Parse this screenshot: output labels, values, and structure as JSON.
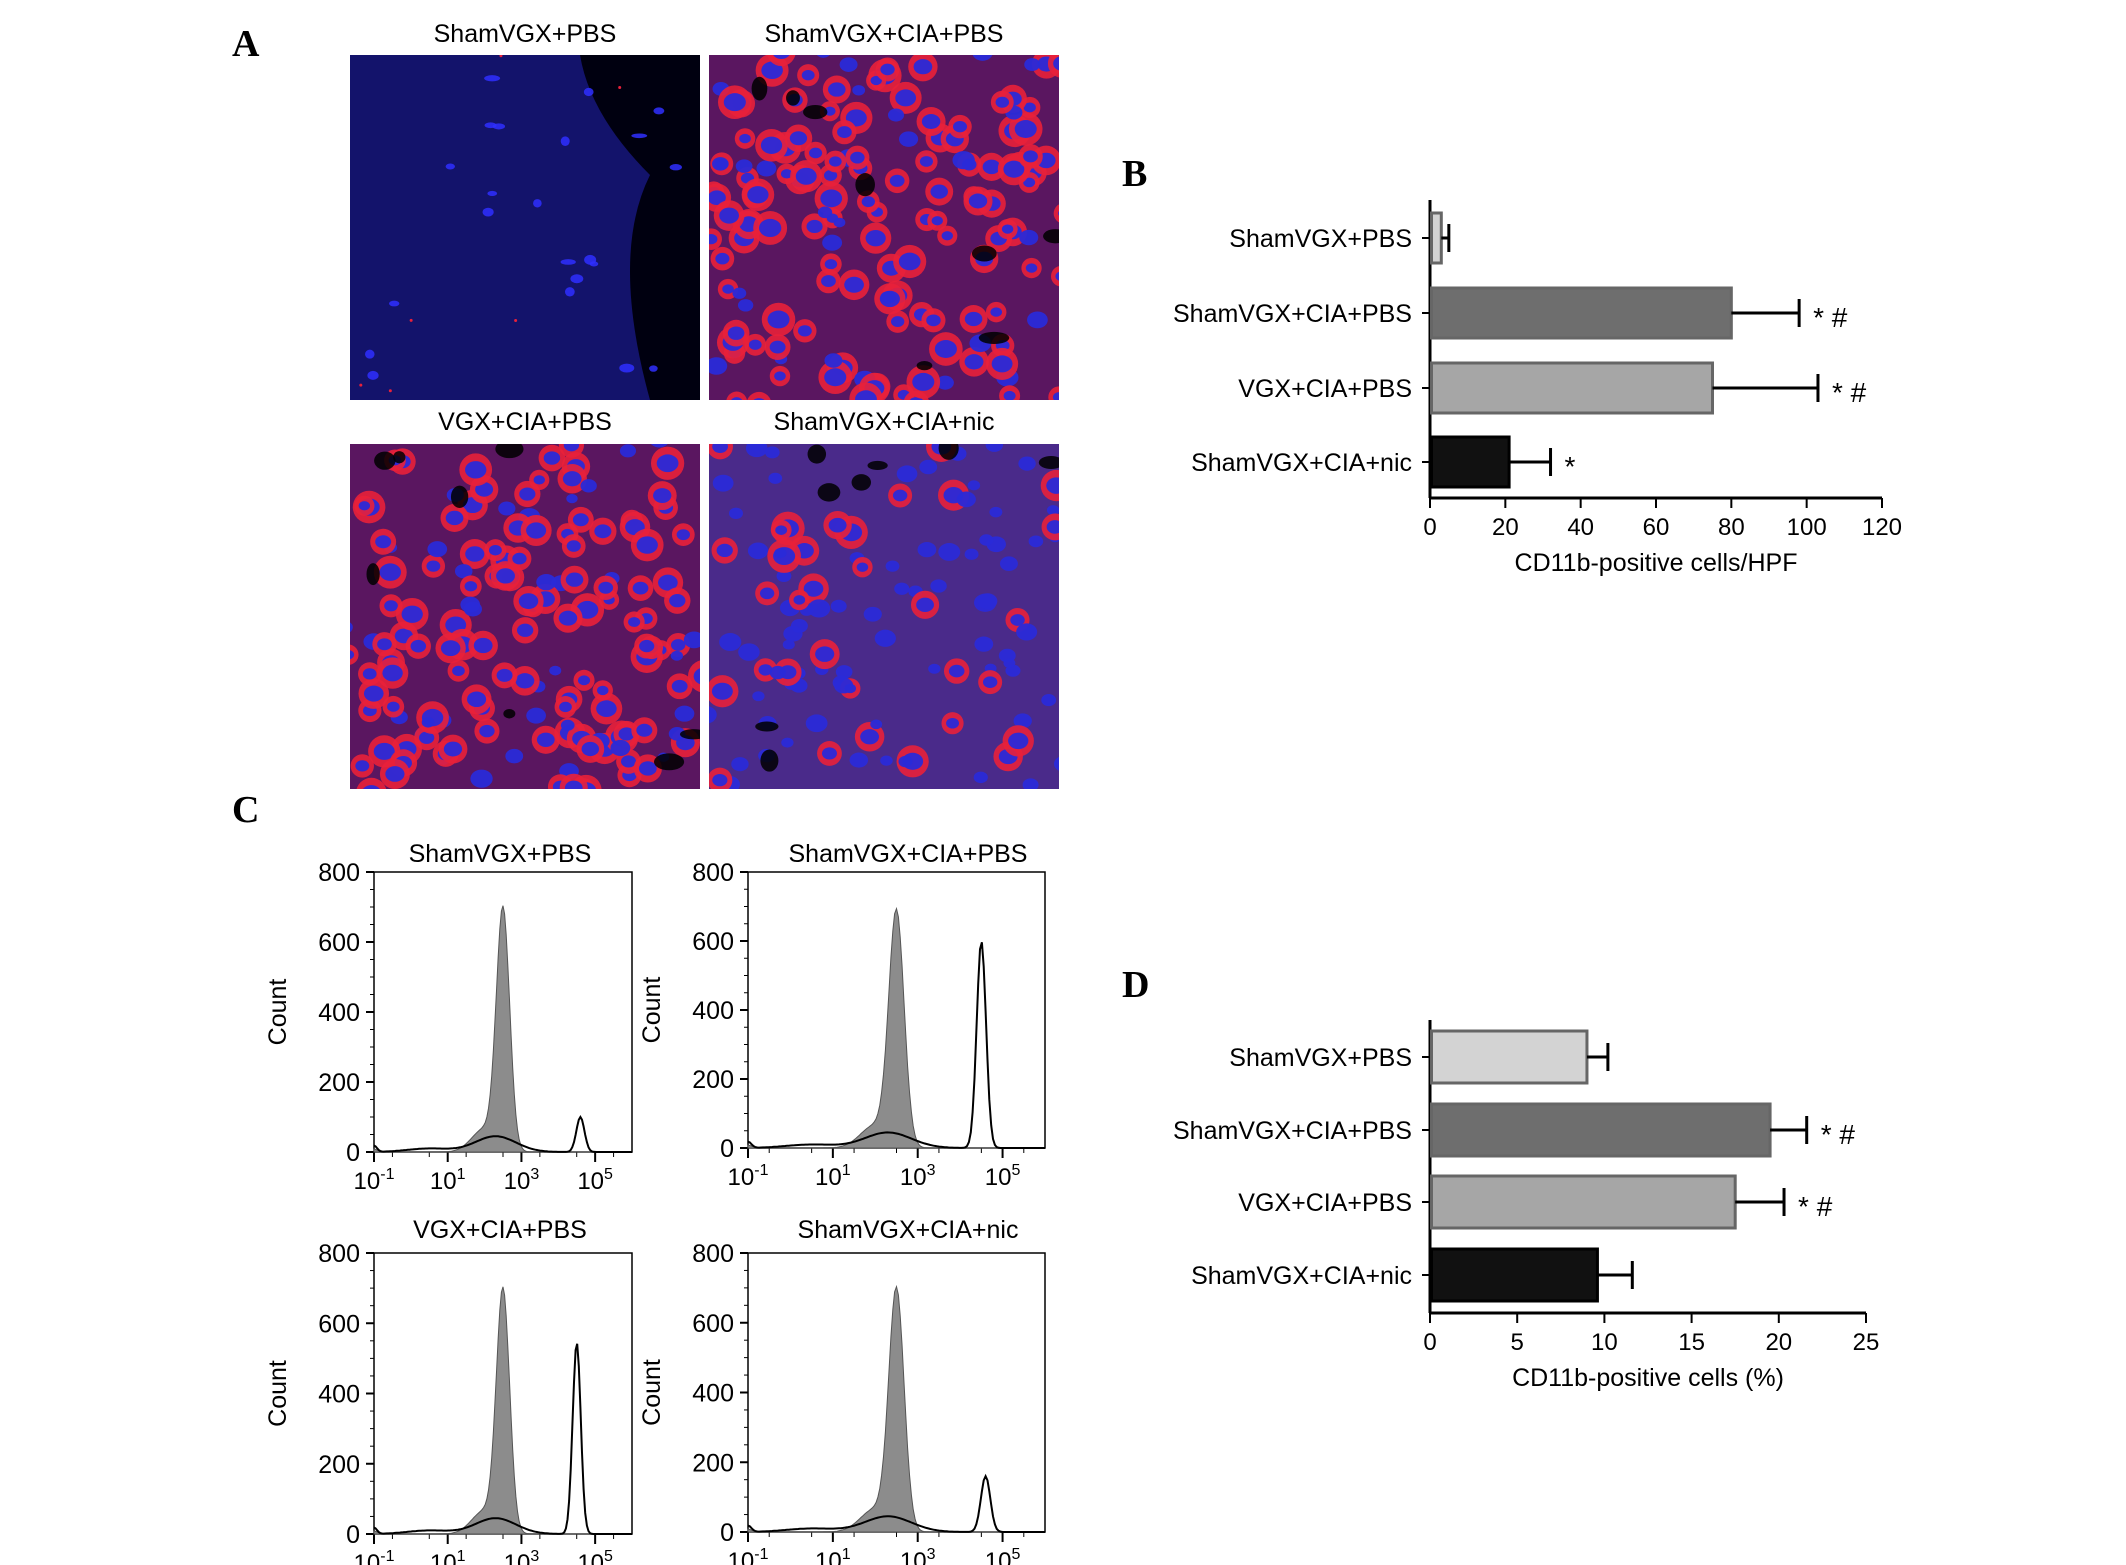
{
  "panel_labels": {
    "a": "A",
    "b": "B",
    "c": "C",
    "d": "D"
  },
  "microscopy": [
    {
      "label": "ShamVGX+PBS",
      "intensity": "low"
    },
    {
      "label": "ShamVGX+CIA+PBS",
      "intensity": "high"
    },
    {
      "label": "VGX+CIA+PBS",
      "intensity": "high"
    },
    {
      "label": "ShamVGX+CIA+nic",
      "intensity": "medium"
    }
  ],
  "colors": {
    "nuclei": "#2a2ad8",
    "stain": "#e8203a",
    "background_dark": "#0a0a3a",
    "bar_light": "#d3d3d3",
    "bar_dark": "#6e6e6e",
    "bar_mid": "#a6a6a6",
    "bar_black": "#111111",
    "histogram_fill": "#8c8c8c"
  },
  "chart_data": [
    {
      "id": "B",
      "type": "bar",
      "orientation": "horizontal",
      "categories": [
        "ShamVGX+PBS",
        "ShamVGX+CIA+PBS",
        "VGX+CIA+PBS",
        "ShamVGX+CIA+nic"
      ],
      "values": [
        3,
        80,
        75,
        21
      ],
      "errors": [
        2,
        18,
        28,
        11
      ],
      "annotations": [
        "",
        "* #",
        "* #",
        "*"
      ],
      "xlabel": "CD11b-positive cells/HPF",
      "xlim": [
        0,
        120
      ],
      "xticks": [
        "0",
        "20",
        "40",
        "60",
        "80",
        "100",
        "120"
      ]
    },
    {
      "id": "D",
      "type": "bar",
      "orientation": "horizontal",
      "categories": [
        "ShamVGX+PBS",
        "ShamVGX+CIA+PBS",
        "VGX+CIA+PBS",
        "ShamVGX+CIA+nic"
      ],
      "values": [
        9,
        19.5,
        17.5,
        9.6
      ],
      "errors": [
        1.2,
        2.1,
        2.8,
        2
      ],
      "annotations": [
        "",
        "* #",
        "* #",
        ""
      ],
      "xlabel": "CD11b-positive cells (%)",
      "xlim": [
        0,
        25
      ],
      "xticks": [
        "0",
        "5",
        "10",
        "15",
        "20",
        "25"
      ]
    },
    {
      "id": "C",
      "type": "area",
      "subtype": "flow-cytometry-histograms",
      "ylabel": "Count",
      "ylim": [
        0,
        800
      ],
      "yticks": [
        "0",
        "200",
        "400",
        "600",
        "800"
      ],
      "xticks": [
        "10-1",
        "101",
        "103",
        "105"
      ],
      "xlog_range": [
        -1,
        6
      ],
      "panels": [
        {
          "title": "ShamVGX+PBS",
          "control_peak": {
            "log": 2.5,
            "count": 680
          },
          "stained_peak": {
            "log": 4.6,
            "count": 100
          }
        },
        {
          "title": "ShamVGX+CIA+PBS",
          "control_peak": {
            "log": 2.5,
            "count": 670
          },
          "stained_peak": {
            "log": 4.5,
            "count": 600
          }
        },
        {
          "title": "VGX+CIA+PBS",
          "control_peak": {
            "log": 2.5,
            "count": 680
          },
          "stained_peak": {
            "log": 4.5,
            "count": 545
          }
        },
        {
          "title": "ShamVGX+CIA+nic",
          "control_peak": {
            "log": 2.5,
            "count": 680
          },
          "stained_peak": {
            "log": 4.6,
            "count": 160
          }
        }
      ]
    }
  ]
}
